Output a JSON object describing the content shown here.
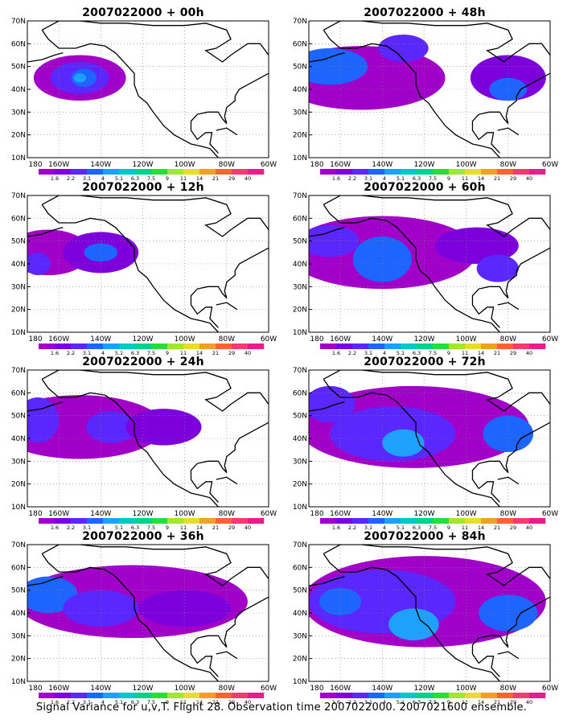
{
  "panels": [
    {
      "title": "2007022000 + 00h",
      "lead": "00h"
    },
    {
      "title": "2007022000 + 48h",
      "lead": "48h"
    },
    {
      "title": "2007022000 + 12h",
      "lead": "12h"
    },
    {
      "title": "2007022000 + 60h",
      "lead": "60h"
    },
    {
      "title": "2007022000 + 24h",
      "lead": "24h"
    },
    {
      "title": "2007022000 + 72h",
      "lead": "72h"
    },
    {
      "title": "2007022000 + 36h",
      "lead": "36h"
    },
    {
      "title": "2007022000 + 84h",
      "lead": "84h"
    }
  ],
  "axes": {
    "lat_labels": [
      "10N",
      "20N",
      "30N",
      "40N",
      "50N",
      "60N",
      "70N"
    ],
    "lon_labels": [
      "180",
      "160W",
      "140W",
      "120W",
      "100W",
      "80W",
      "60W"
    ]
  },
  "colorbar": {
    "labels": [
      "1.6",
      "2.2",
      "3.1",
      "4",
      "5.1",
      "6.3",
      "7.5",
      "9",
      "11",
      "14",
      "21",
      "29",
      "40"
    ],
    "colors": [
      "#a000c8",
      "#7d00dc",
      "#5a28ff",
      "#1e64ff",
      "#1ea0ff",
      "#00c8c8",
      "#00d28c",
      "#28dc3c",
      "#a0e632",
      "#e6dc32",
      "#f0a028",
      "#fa6432",
      "#f03c6e",
      "#e61e8c"
    ]
  },
  "footer": "Signal Variance for u,v,T. Flight 28. Observation time 2007022000. 2007021600 ensemble."
}
